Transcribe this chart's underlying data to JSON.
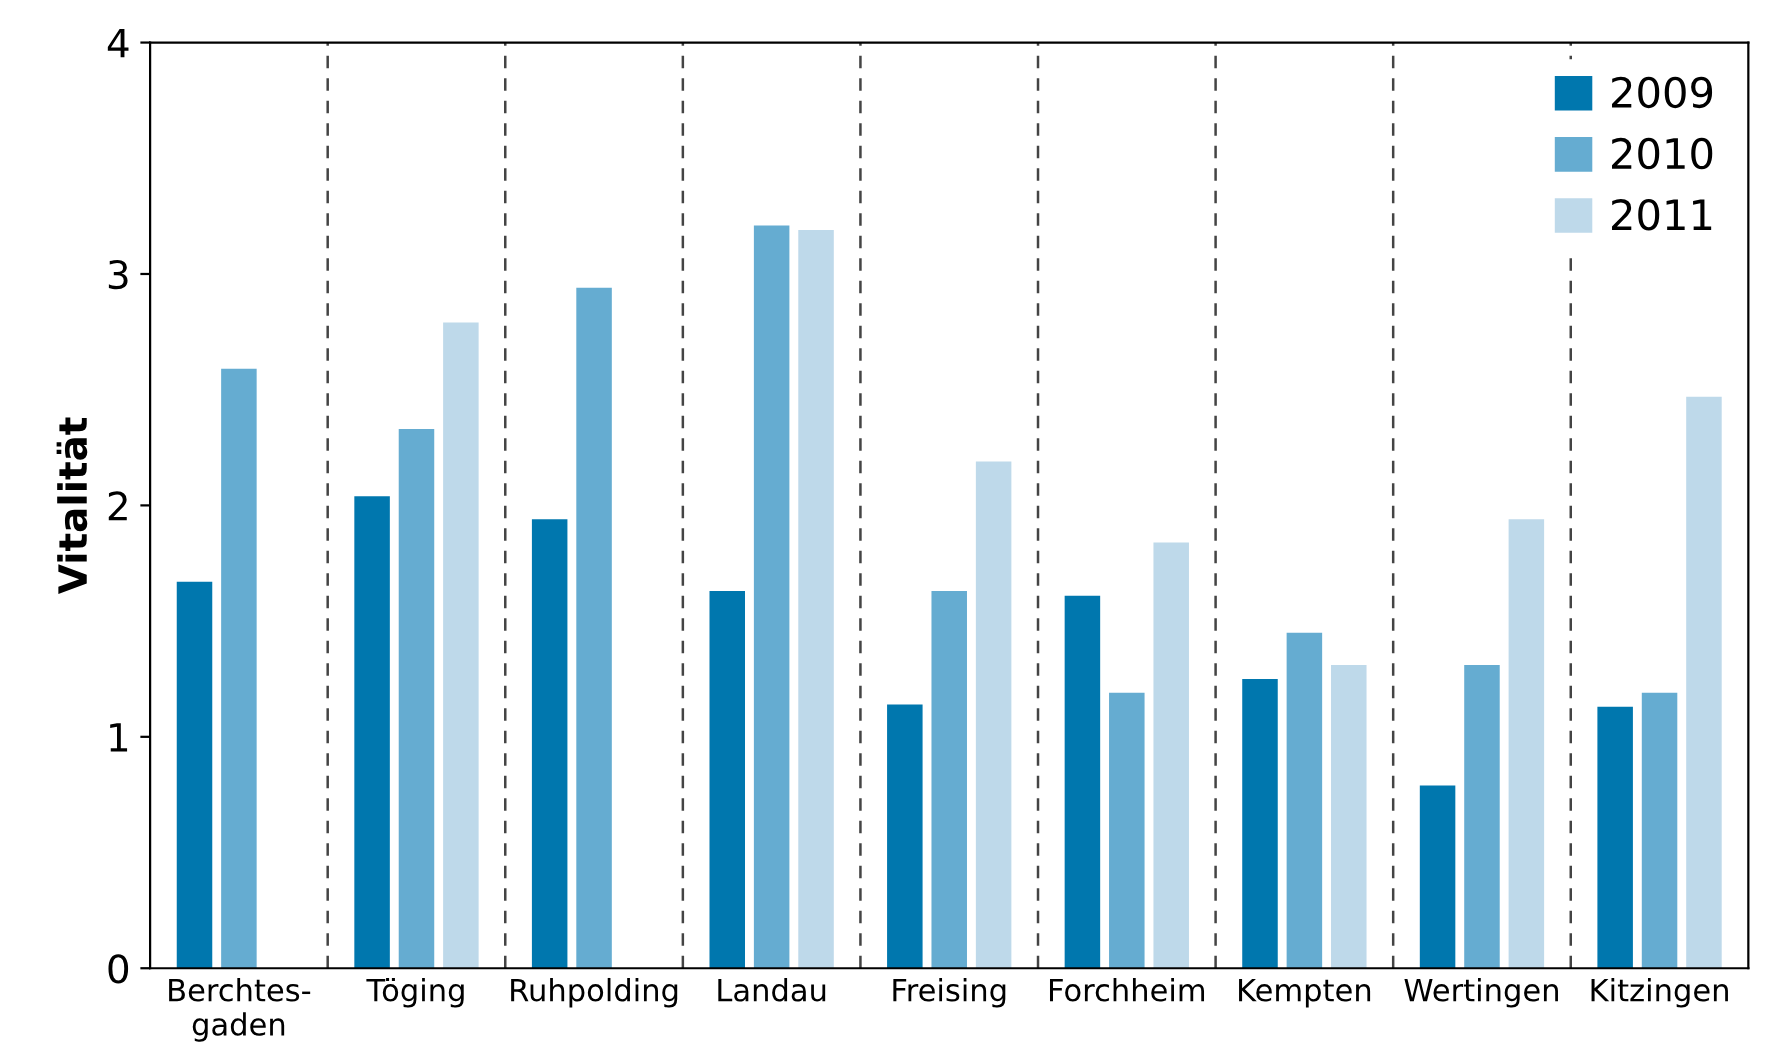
{
  "chart_data": {
    "type": "bar",
    "ylabel": "Vitalität",
    "categories": [
      "Berchtes-\ngaden",
      "Töging",
      "Ruhpolding",
      "Landau",
      "Freising",
      "Forchheim",
      "Kempten",
      "Wertingen",
      "Kitzingen"
    ],
    "series": [
      {
        "name": "2009",
        "color": "#0077ae",
        "values": [
          1.67,
          2.04,
          1.94,
          1.63,
          1.14,
          1.61,
          1.25,
          0.79,
          1.13
        ]
      },
      {
        "name": "2010",
        "color": "#65acd1",
        "values": [
          2.59,
          2.33,
          2.94,
          3.21,
          1.63,
          1.19,
          1.45,
          1.31,
          1.19
        ]
      },
      {
        "name": "2011",
        "color": "#bed9ea",
        "values": [
          null,
          2.79,
          null,
          3.19,
          2.19,
          1.84,
          1.31,
          1.94,
          2.47
        ]
      }
    ],
    "ylim": [
      0,
      4
    ],
    "yticks": [
      0,
      1,
      2,
      3,
      4
    ],
    "grid": "x",
    "legend": "top right"
  }
}
